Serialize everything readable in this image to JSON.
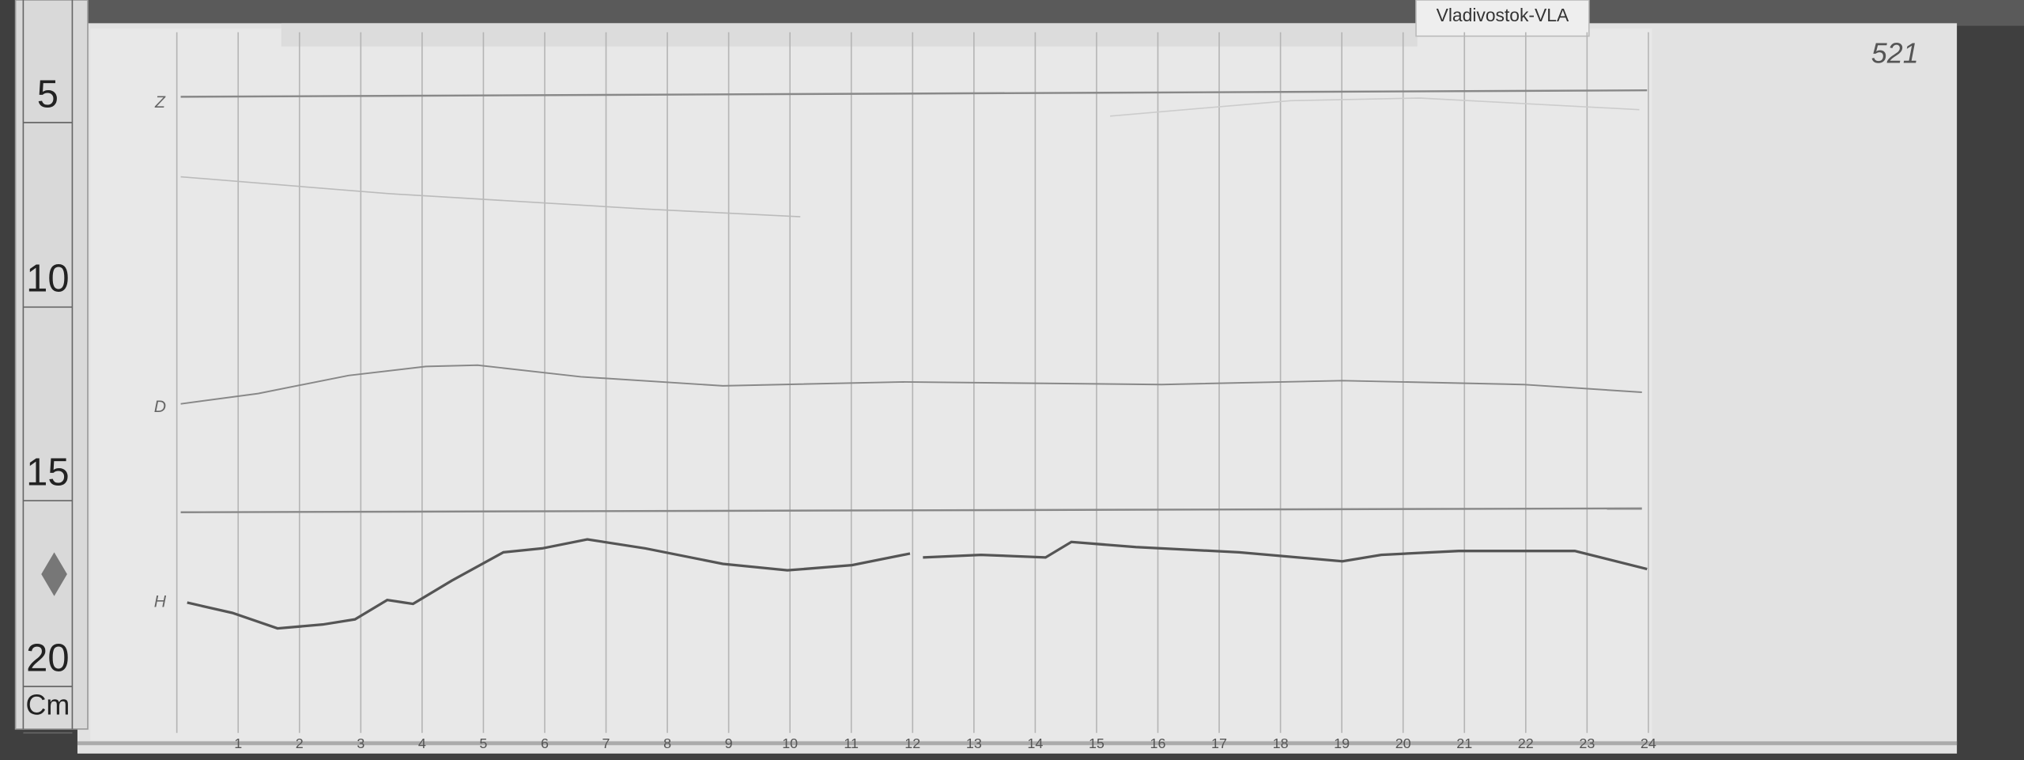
{
  "station_label": "Vladivostok-VLA",
  "sheet_number": "521",
  "ruler": {
    "labels": [
      "5",
      "10",
      "15",
      "20",
      "Cm"
    ]
  },
  "traces": {
    "labels": [
      "Z",
      "D",
      "H"
    ]
  },
  "hours": {
    "labels": [
      "1",
      "2",
      "3",
      "4",
      "5",
      "6",
      "7",
      "8",
      "9",
      "10",
      "11",
      "12",
      "13",
      "14",
      "15",
      "16",
      "17",
      "18",
      "19",
      "20",
      "21",
      "22",
      "23",
      "24"
    ]
  }
}
